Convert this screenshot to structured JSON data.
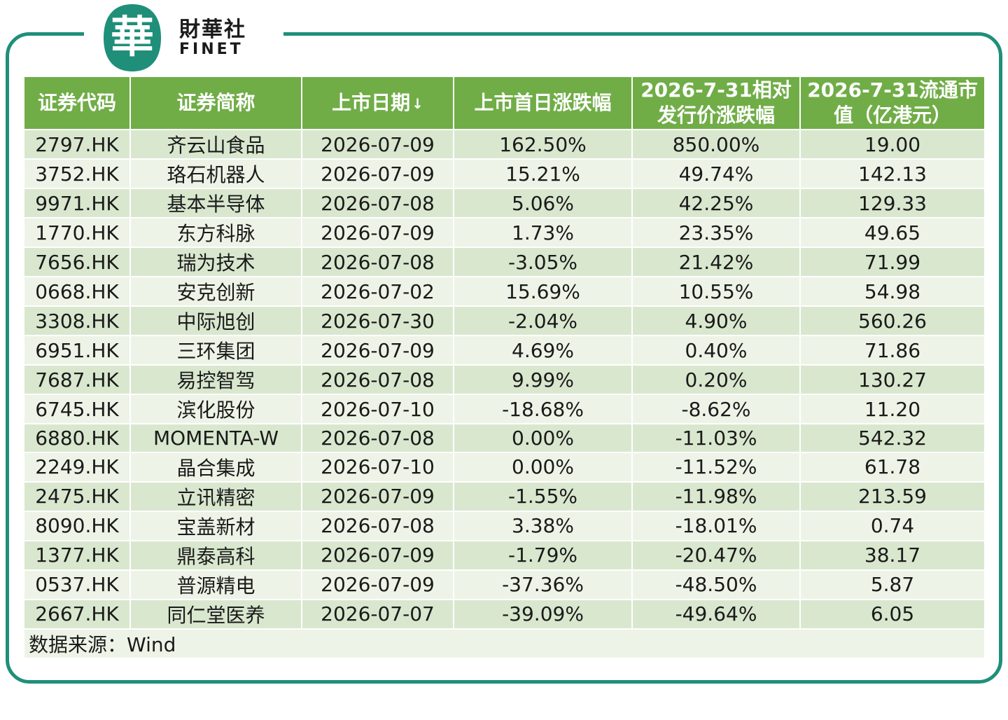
{
  "brand": {
    "cn": "財華社",
    "en": "FINET",
    "mark": "華"
  },
  "table": {
    "headers": [
      {
        "label": "证券代码"
      },
      {
        "label": "证券简称"
      },
      {
        "label": "上市日期",
        "sort_icon": "↓"
      },
      {
        "label": "上市首日涨跌幅"
      },
      {
        "label": "2026-7-31相对发行价涨跌幅"
      },
      {
        "label": "2026-7-31流通市值（亿港元）"
      }
    ],
    "rows": [
      [
        "2797.HK",
        "齐云山食品",
        "2026-07-09",
        "162.50%",
        "850.00%",
        "19.00"
      ],
      [
        "3752.HK",
        "珞石机器人",
        "2026-07-09",
        "15.21%",
        "49.74%",
        "142.13"
      ],
      [
        "9971.HK",
        "基本半导体",
        "2026-07-08",
        "5.06%",
        "42.25%",
        "129.33"
      ],
      [
        "1770.HK",
        "东方科脉",
        "2026-07-09",
        "1.73%",
        "23.35%",
        "49.65"
      ],
      [
        "7656.HK",
        "瑞为技术",
        "2026-07-08",
        "-3.05%",
        "21.42%",
        "71.99"
      ],
      [
        "0668.HK",
        "安克创新",
        "2026-07-02",
        "15.69%",
        "10.55%",
        "54.98"
      ],
      [
        "3308.HK",
        "中际旭创",
        "2026-07-30",
        "-2.04%",
        "4.90%",
        "560.26"
      ],
      [
        "6951.HK",
        "三环集团",
        "2026-07-09",
        "4.69%",
        "0.40%",
        "71.86"
      ],
      [
        "7687.HK",
        "易控智驾",
        "2026-07-08",
        "9.99%",
        "0.20%",
        "130.27"
      ],
      [
        "6745.HK",
        "滨化股份",
        "2026-07-10",
        "-18.68%",
        "-8.62%",
        "11.20"
      ],
      [
        "6880.HK",
        "MOMENTA-W",
        "2026-07-08",
        "0.00%",
        "-11.03%",
        "542.32"
      ],
      [
        "2249.HK",
        "晶合集成",
        "2026-07-10",
        "0.00%",
        "-11.52%",
        "61.78"
      ],
      [
        "2475.HK",
        "立讯精密",
        "2026-07-09",
        "-1.55%",
        "-11.98%",
        "213.59"
      ],
      [
        "8090.HK",
        "宝盖新材",
        "2026-07-08",
        "3.38%",
        "-18.01%",
        "0.74"
      ],
      [
        "1377.HK",
        "鼎泰高科",
        "2026-07-09",
        "-1.79%",
        "-20.47%",
        "38.17"
      ],
      [
        "0537.HK",
        "普源精电",
        "2026-07-09",
        "-37.36%",
        "-48.50%",
        "5.87"
      ],
      [
        "2667.HK",
        "同仁堂医养",
        "2026-07-07",
        "-39.09%",
        "-49.64%",
        "6.05"
      ]
    ],
    "source": "数据来源：Wind"
  },
  "colors": {
    "header_bg": "#70ad47",
    "row_dark": "#d9e7cf",
    "row_light": "#edf4e7",
    "frame": "#1f8f7a"
  }
}
